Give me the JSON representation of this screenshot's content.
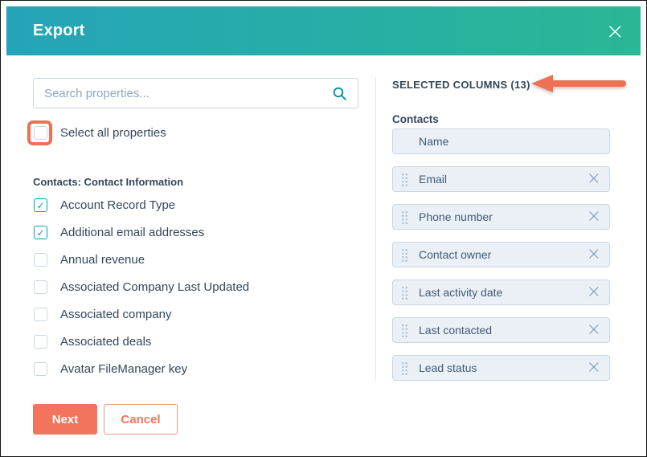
{
  "header": {
    "title": "Export",
    "close_icon": "×"
  },
  "search": {
    "placeholder": "Search properties...",
    "icon": "magnifying-glass"
  },
  "select_all": {
    "label": "Select all properties",
    "checked": false
  },
  "property_section": {
    "heading": "Contacts: Contact Information",
    "check_glyph": "✓",
    "properties": [
      {
        "label": "Account Record Type",
        "checked": true
      },
      {
        "label": "Additional email addresses",
        "checked": true
      },
      {
        "label": "Annual revenue",
        "checked": false
      },
      {
        "label": "Associated Company Last Updated",
        "checked": false
      },
      {
        "label": "Associated company",
        "checked": false
      },
      {
        "label": "Associated deals",
        "checked": false
      },
      {
        "label": "Avatar FileManager key",
        "checked": false
      }
    ]
  },
  "selected_columns": {
    "heading": "SELECTED COLUMNS (13)",
    "count": 13,
    "group_label": "Contacts",
    "remove_icon": "×",
    "columns": [
      {
        "label": "Name",
        "draggable": false,
        "removable": false
      },
      {
        "label": "Email",
        "draggable": true,
        "removable": true
      },
      {
        "label": "Phone number",
        "draggable": true,
        "removable": true
      },
      {
        "label": "Contact owner",
        "draggable": true,
        "removable": true
      },
      {
        "label": "Last activity date",
        "draggable": true,
        "removable": true
      },
      {
        "label": "Last contacted",
        "draggable": true,
        "removable": true
      },
      {
        "label": "Lead status",
        "draggable": true,
        "removable": true
      }
    ]
  },
  "footer": {
    "next_label": "Next",
    "cancel_label": "Cancel"
  },
  "annotations": {
    "highlight_box_target": "select-all-checkbox",
    "arrow_target": "selected-columns-heading"
  },
  "colors": {
    "header_gradient_start": "#25a4b8",
    "header_gradient_end": "#2ab795",
    "accent_teal": "#00a4bd",
    "search_icon_teal": "#0091ae",
    "primary_orange": "#f2745c",
    "annotation_orange": "#ef7154",
    "item_background": "#eaf0f6",
    "border_gray": "#cbd6e2",
    "text_slate": "#33475b"
  }
}
